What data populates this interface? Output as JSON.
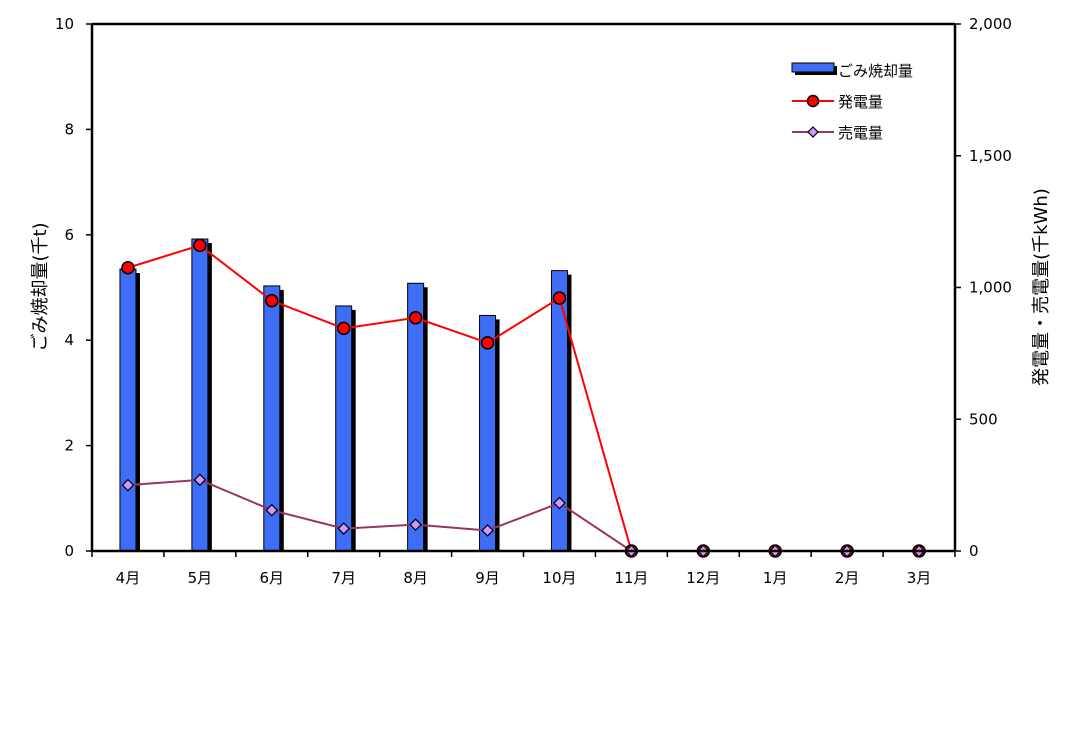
{
  "chart_data": {
    "type": "bar",
    "categories": [
      "4月",
      "5月",
      "6月",
      "7月",
      "8月",
      "9月",
      "10月",
      "11月",
      "12月",
      "1月",
      "2月",
      "3月"
    ],
    "y_left": {
      "label": "ごみ焼却量(千t)",
      "range": [
        0,
        10
      ],
      "ticks": [
        "0",
        "2",
        "4",
        "6",
        "8",
        "10"
      ]
    },
    "y_right": {
      "label": "発電量・売電量(千kWh)",
      "range": [
        0,
        2000
      ],
      "ticks": [
        "0",
        "500",
        "1,000",
        "1,500",
        "2,000"
      ]
    },
    "series": [
      {
        "name": "ごみ焼却量",
        "kind": "bar",
        "axis": "left",
        "color": "#3d6ef5",
        "values": [
          5.35,
          5.92,
          5.03,
          4.65,
          5.08,
          4.47,
          5.32,
          null,
          null,
          null,
          null,
          null
        ]
      },
      {
        "name": "発電量",
        "kind": "line",
        "axis": "right",
        "color": "#ff0000",
        "marker": "circle",
        "values": [
          1075,
          1160,
          950,
          845,
          885,
          790,
          960,
          0,
          0,
          0,
          0,
          0
        ]
      },
      {
        "name": "売電量",
        "kind": "line",
        "axis": "right",
        "color": "#993366",
        "marker": "diamond",
        "marker_fill": "#cc99ff",
        "values": [
          250,
          270,
          155,
          85,
          100,
          78,
          182,
          0,
          0,
          0,
          0,
          0
        ]
      }
    ],
    "legend": {
      "position": "top-right"
    },
    "grid": false
  }
}
